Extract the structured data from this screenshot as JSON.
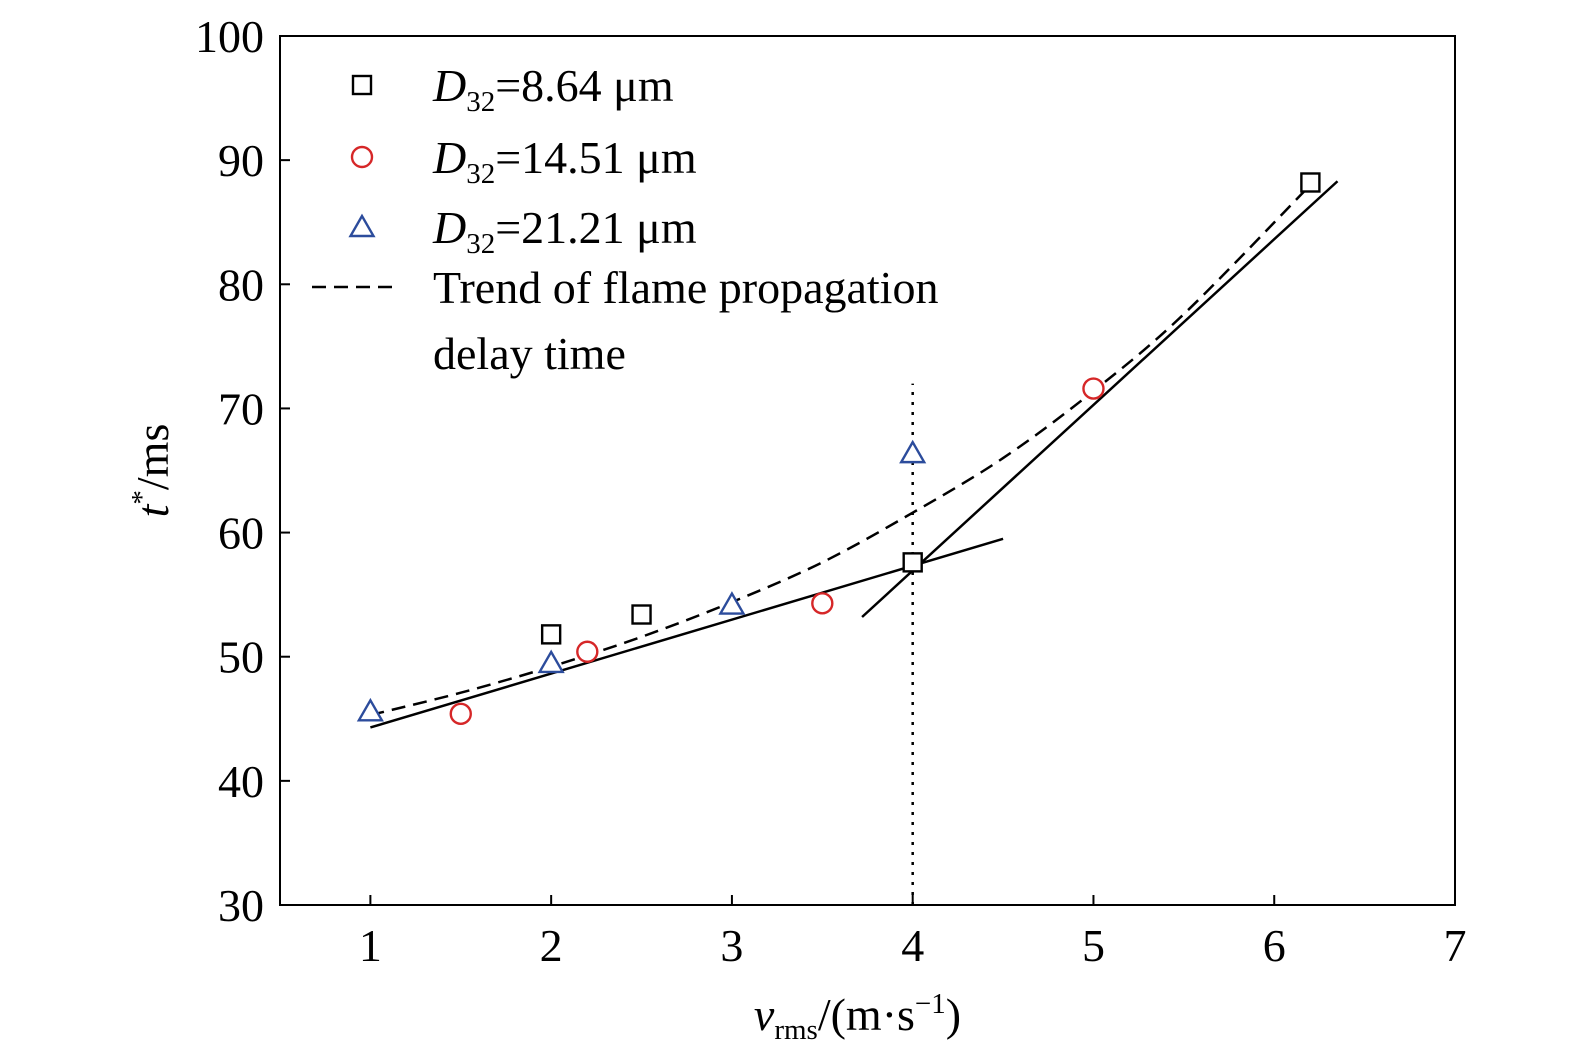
{
  "chart_data": {
    "type": "scatter",
    "xlabel": {
      "main": "v",
      "sub": "rms",
      "rest": "/(m·s",
      "sup": "−1",
      "close": ")"
    },
    "ylabel": {
      "main": "t",
      "sup": "*",
      "rest": "/ms"
    },
    "xlim": [
      0.5,
      7
    ],
    "ylim": [
      30,
      100
    ],
    "xticks": [
      1,
      2,
      3,
      4,
      5,
      6,
      7
    ],
    "yticks": [
      30,
      40,
      50,
      60,
      70,
      80,
      90,
      100
    ],
    "grid": false,
    "legend_position": "top-left",
    "series": [
      {
        "name": "D32=8.64 μm",
        "label": {
          "main": "D",
          "sub": "32",
          "rest": "=8.64 μm"
        },
        "marker": "square",
        "color": "#000000",
        "x": [
          2.0,
          2.5,
          4.0,
          6.2
        ],
        "y": [
          51.8,
          53.4,
          57.6,
          88.2
        ]
      },
      {
        "name": "D32=14.51 μm",
        "label": {
          "main": "D",
          "sub": "32",
          "rest": "=14.51 μm"
        },
        "marker": "circle",
        "color": "#d62728",
        "x": [
          1.5,
          2.2,
          3.5,
          5.0
        ],
        "y": [
          45.4,
          50.4,
          54.3,
          71.6
        ]
      },
      {
        "name": "D32=21.21 μm",
        "label": {
          "main": "D",
          "sub": "32",
          "rest": "=21.21 μm"
        },
        "marker": "triangle",
        "color": "#2c4c9c",
        "x": [
          1.0,
          2.0,
          3.0,
          4.0
        ],
        "y": [
          45.6,
          49.5,
          54.2,
          66.4
        ]
      }
    ],
    "trend": {
      "label_lines": [
        "Trend of flame propagation",
        "delay time"
      ],
      "x": [
        1.0,
        1.5,
        2.0,
        2.5,
        3.0,
        3.5,
        4.0,
        4.5,
        5.0,
        5.5,
        6.2
      ],
      "y": [
        45.3,
        47.1,
        49.2,
        51.6,
        54.4,
        57.6,
        61.6,
        66.0,
        71.4,
        77.6,
        88.0
      ]
    },
    "fit_lines": [
      {
        "x": [
          1.0,
          4.5
        ],
        "y": [
          44.3,
          59.5
        ]
      },
      {
        "x": [
          3.72,
          6.35
        ],
        "y": [
          53.2,
          88.3
        ]
      }
    ],
    "vline": {
      "x": 4.0,
      "y": [
        30,
        72
      ]
    }
  }
}
